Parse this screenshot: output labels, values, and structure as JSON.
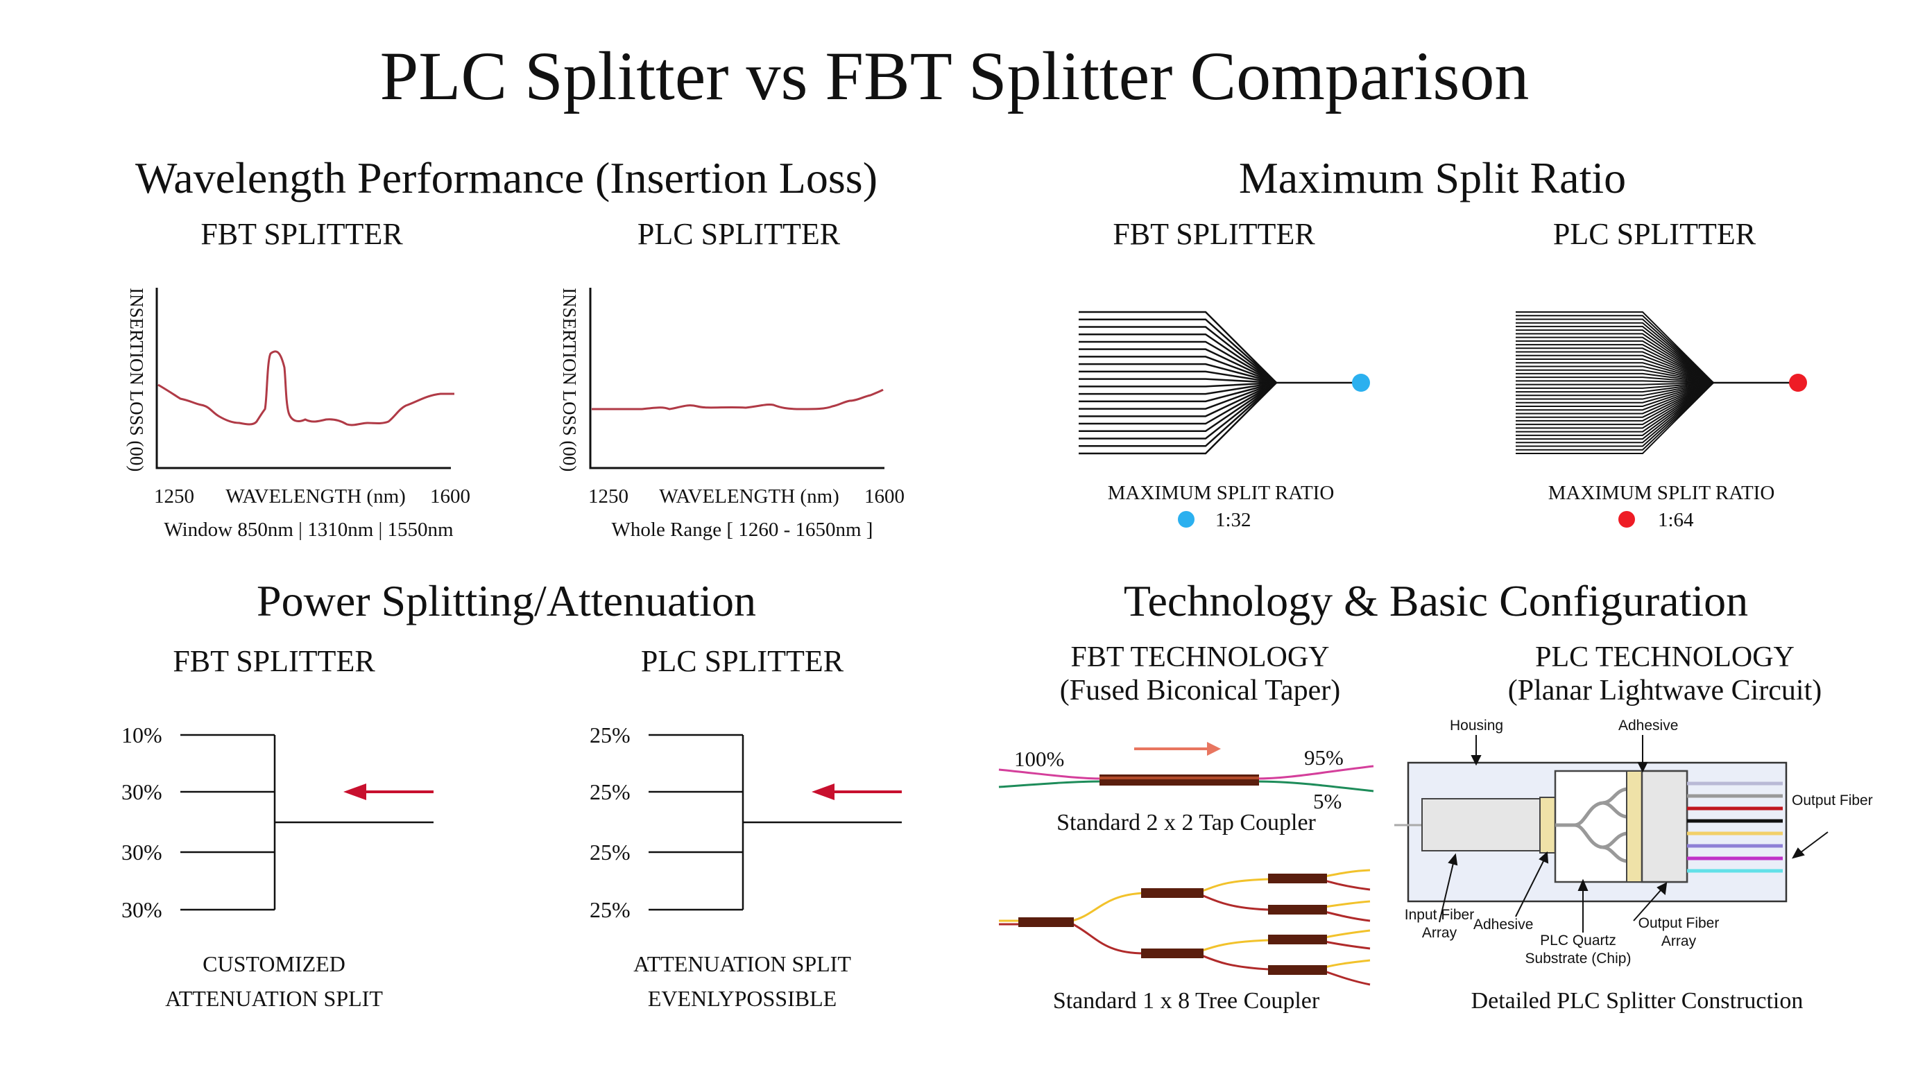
{
  "title": "PLC Splitter vs FBT Splitter Comparison",
  "wavelength": {
    "title": "Wavelength Performance (Insertion Loss)",
    "fbt": {
      "label": "FBT SPLITTER",
      "ylabel": "INSERTION LOSS (00)",
      "xlabel": "WAVELENGTH (nm)",
      "xmin": "1250",
      "xmax": "1600",
      "caption": "Window  850nm | 1310nm | 1550nm"
    },
    "plc": {
      "label": "PLC SPLITTER",
      "ylabel": "INSERTION LOSS (00)",
      "xlabel": "WAVELENGTH (nm)",
      "xmin": "1250",
      "xmax": "1600",
      "caption": "Whole Range [ 1260 - 1650nm ]"
    }
  },
  "split_ratio": {
    "title": "Maximum Split Ratio",
    "fbt": {
      "label": "FBT SPLITTER",
      "caption": "MAXIMUM SPLIT RATIO",
      "ratio": "1:32",
      "dot_color": "#2bb0ef"
    },
    "plc": {
      "label": "PLC SPLITTER",
      "caption": "MAXIMUM SPLIT RATIO",
      "ratio": "1:64",
      "dot_color": "#ee1c25"
    }
  },
  "power": {
    "title": "Power Splitting/Attenuation",
    "fbt": {
      "label": "FBT SPLITTER",
      "percents": [
        "10%",
        "30%",
        "30%",
        "30%"
      ],
      "caption_line1": "CUSTOMIZED",
      "caption_line2": "ATTENUATION SPLIT"
    },
    "plc": {
      "label": "PLC SPLITTER",
      "percents": [
        "25%",
        "25%",
        "25%",
        "25%"
      ],
      "caption_line1": "ATTENUATION SPLIT",
      "caption_line2": "EVENLYPOSSIBLE"
    },
    "arrow_color": "#c8102e"
  },
  "technology": {
    "title": "Technology & Basic Configuration",
    "fbt": {
      "title_line1": "FBT TECHNOLOGY",
      "title_line2": "(Fused Biconical Taper)",
      "tap_in": "100%",
      "tap_out_main": "95%",
      "tap_out_tap": "5%",
      "tap_caption": "Standard 2 x 2 Tap Coupler",
      "tree_caption": "Standard 1 x 8 Tree Coupler"
    },
    "plc": {
      "title_line1": "PLC TECHNOLOGY",
      "title_line2": "(Planar Lightwave Circuit)",
      "housing": "Housing",
      "adhesive_top": "Adhesive",
      "output_fiber": "Output Fiber",
      "input_array_line1": "Input Fiber",
      "input_array_line2": "Array",
      "adhesive_bottom": "Adhesive",
      "chip_line1": "PLC Quartz",
      "chip_line2": "Substrate (Chip)",
      "output_array_line1": "Output Fiber",
      "output_array_line2": "Array",
      "caption": "Detailed PLC Splitter Construction"
    }
  }
}
